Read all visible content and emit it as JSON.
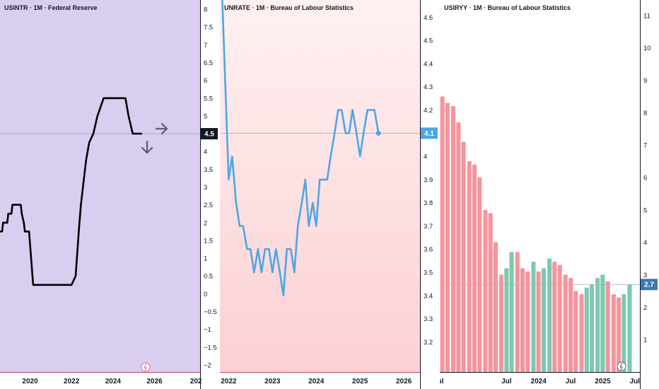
{
  "panels": [
    {
      "title": "USINTR · 1M · Federal Reserve",
      "last_value_label": "4.5",
      "colors": {
        "background": "#d9cdf0",
        "line": "#000000",
        "last_badge": "#131722",
        "arrow": "#5d606b"
      }
    },
    {
      "title": "UNRATE · 1M · Bureau of Labour Statistics",
      "last_value_label": "4.1",
      "colors": {
        "background": "#fde3e3",
        "line": "#4ea6e3",
        "last_badge": "#4ea6e3"
      }
    },
    {
      "title": "USIRYY · 1M · Bureau of Labour Statistics",
      "last_value_label": "2.7",
      "colors": {
        "background": "#ffffff",
        "up": "#7dc9b0",
        "down": "#f5949c",
        "last_badge": "#3a7ab0"
      }
    }
  ],
  "chart_data": [
    {
      "type": "line",
      "ylim": [
        -2.2,
        8.1
      ],
      "y_ticks": [
        "8",
        "7.5",
        "7",
        "6.5",
        "6",
        "5.5",
        "5",
        "4.5",
        "4",
        "3.5",
        "3",
        "2.5",
        "2",
        "1.5",
        "1",
        "0.5",
        "0",
        "−0.5",
        "−1",
        "−1.5",
        "−2"
      ],
      "x_ticks": [
        "2020",
        "2022",
        "2024",
        "2026",
        "202"
      ],
      "x_tick_pos": [
        2020,
        2022,
        2024,
        2026,
        2028
      ],
      "xlim": [
        2018.55,
        2028.2
      ],
      "points": [
        [
          2018.55,
          1.75
        ],
        [
          2018.65,
          1.75
        ],
        [
          2018.7,
          2.0
        ],
        [
          2018.9,
          2.0
        ],
        [
          2018.95,
          2.25
        ],
        [
          2019.1,
          2.25
        ],
        [
          2019.15,
          2.5
        ],
        [
          2019.55,
          2.5
        ],
        [
          2019.6,
          2.25
        ],
        [
          2019.7,
          2.0
        ],
        [
          2019.75,
          1.75
        ],
        [
          2019.95,
          1.75
        ],
        [
          2020.15,
          0.25
        ],
        [
          2022.0,
          0.25
        ],
        [
          2022.2,
          0.5
        ],
        [
          2022.35,
          1.75
        ],
        [
          2022.45,
          2.5
        ],
        [
          2022.6,
          3.25
        ],
        [
          2022.7,
          3.75
        ],
        [
          2022.85,
          4.25
        ],
        [
          2023.05,
          4.5
        ],
        [
          2023.15,
          4.75
        ],
        [
          2023.25,
          5.0
        ],
        [
          2023.4,
          5.25
        ],
        [
          2023.55,
          5.5
        ],
        [
          2024.6,
          5.5
        ],
        [
          2024.75,
          5.0
        ],
        [
          2024.85,
          4.75
        ],
        [
          2024.95,
          4.5
        ],
        [
          2025.4,
          4.5
        ]
      ],
      "last_value": 4.5
    },
    {
      "type": "line",
      "ylim": [
        3.07,
        4.65
      ],
      "y_ticks": [
        "4.6",
        "4.5",
        "4.4",
        "4.3",
        "4.2",
        "4.1",
        "4",
        "3.9",
        "3.8",
        "3.7",
        "3.6",
        "3.5",
        "3.4",
        "3.3",
        "3.2"
      ],
      "x_ticks": [
        "2022",
        "2023",
        "2024",
        "2025",
        "2026"
      ],
      "x_tick_pos": [
        2022,
        2023,
        2024,
        2025,
        2026
      ],
      "xlim": [
        2021.8,
        2026.37
      ],
      "points": [
        [
          2021.85,
          4.7
        ],
        [
          2022.0,
          3.9
        ],
        [
          2022.08,
          4.0
        ],
        [
          2022.17,
          3.8
        ],
        [
          2022.25,
          3.7
        ],
        [
          2022.33,
          3.7
        ],
        [
          2022.42,
          3.6
        ],
        [
          2022.5,
          3.6
        ],
        [
          2022.58,
          3.5
        ],
        [
          2022.67,
          3.6
        ],
        [
          2022.75,
          3.5
        ],
        [
          2022.83,
          3.6
        ],
        [
          2022.92,
          3.6
        ],
        [
          2023.0,
          3.5
        ],
        [
          2023.08,
          3.6
        ],
        [
          2023.17,
          3.5
        ],
        [
          2023.25,
          3.4
        ],
        [
          2023.33,
          3.6
        ],
        [
          2023.42,
          3.6
        ],
        [
          2023.5,
          3.5
        ],
        [
          2023.58,
          3.7
        ],
        [
          2023.67,
          3.8
        ],
        [
          2023.75,
          3.9
        ],
        [
          2023.83,
          3.7
        ],
        [
          2023.92,
          3.8
        ],
        [
          2024.0,
          3.7
        ],
        [
          2024.08,
          3.9
        ],
        [
          2024.17,
          3.9
        ],
        [
          2024.25,
          3.9
        ],
        [
          2024.33,
          4.0
        ],
        [
          2024.42,
          4.1
        ],
        [
          2024.5,
          4.2
        ],
        [
          2024.58,
          4.2
        ],
        [
          2024.67,
          4.1
        ],
        [
          2024.75,
          4.1
        ],
        [
          2024.83,
          4.2
        ],
        [
          2024.92,
          4.1
        ],
        [
          2025.0,
          4.0
        ],
        [
          2025.08,
          4.1
        ],
        [
          2025.17,
          4.2
        ],
        [
          2025.25,
          4.2
        ],
        [
          2025.33,
          4.2
        ],
        [
          2025.42,
          4.1
        ]
      ],
      "last_value": 4.1
    },
    {
      "type": "bar",
      "ylim": [
        0,
        11.3
      ],
      "y_ticks": [
        "11",
        "10",
        "9",
        "8",
        "7",
        "6",
        "5",
        "4",
        "3",
        "2",
        "1"
      ],
      "x_ticks": [
        "ul",
        "Jul",
        "2024",
        "Jul",
        "2025",
        "Jul"
      ],
      "x_tick_pos": [
        2022.47,
        2023.5,
        2024.0,
        2024.5,
        2025.0,
        2025.5
      ],
      "xlim": [
        2022.46,
        2025.58
      ],
      "bar_dates": [
        2022.5,
        2022.58,
        2022.67,
        2022.75,
        2022.83,
        2022.92,
        2023.0,
        2023.08,
        2023.17,
        2023.25,
        2023.33,
        2023.42,
        2023.5,
        2023.58,
        2023.67,
        2023.75,
        2023.83,
        2023.92,
        2024.0,
        2024.08,
        2024.17,
        2024.25,
        2024.33,
        2024.42,
        2024.5,
        2024.58,
        2024.67,
        2024.75,
        2024.83,
        2024.92,
        2025.0,
        2025.08,
        2025.17,
        2025.25,
        2025.33,
        2025.42
      ],
      "values": [
        8.5,
        8.3,
        8.2,
        7.7,
        7.1,
        6.5,
        6.4,
        6.0,
        5.0,
        4.9,
        4.0,
        3.0,
        3.2,
        3.7,
        3.7,
        3.2,
        3.1,
        3.4,
        3.1,
        3.2,
        3.5,
        3.4,
        3.3,
        3.0,
        2.9,
        2.5,
        2.4,
        2.6,
        2.7,
        2.9,
        3.0,
        2.8,
        2.4,
        2.3,
        2.4,
        2.7
      ],
      "last_value": 2.7
    }
  ]
}
